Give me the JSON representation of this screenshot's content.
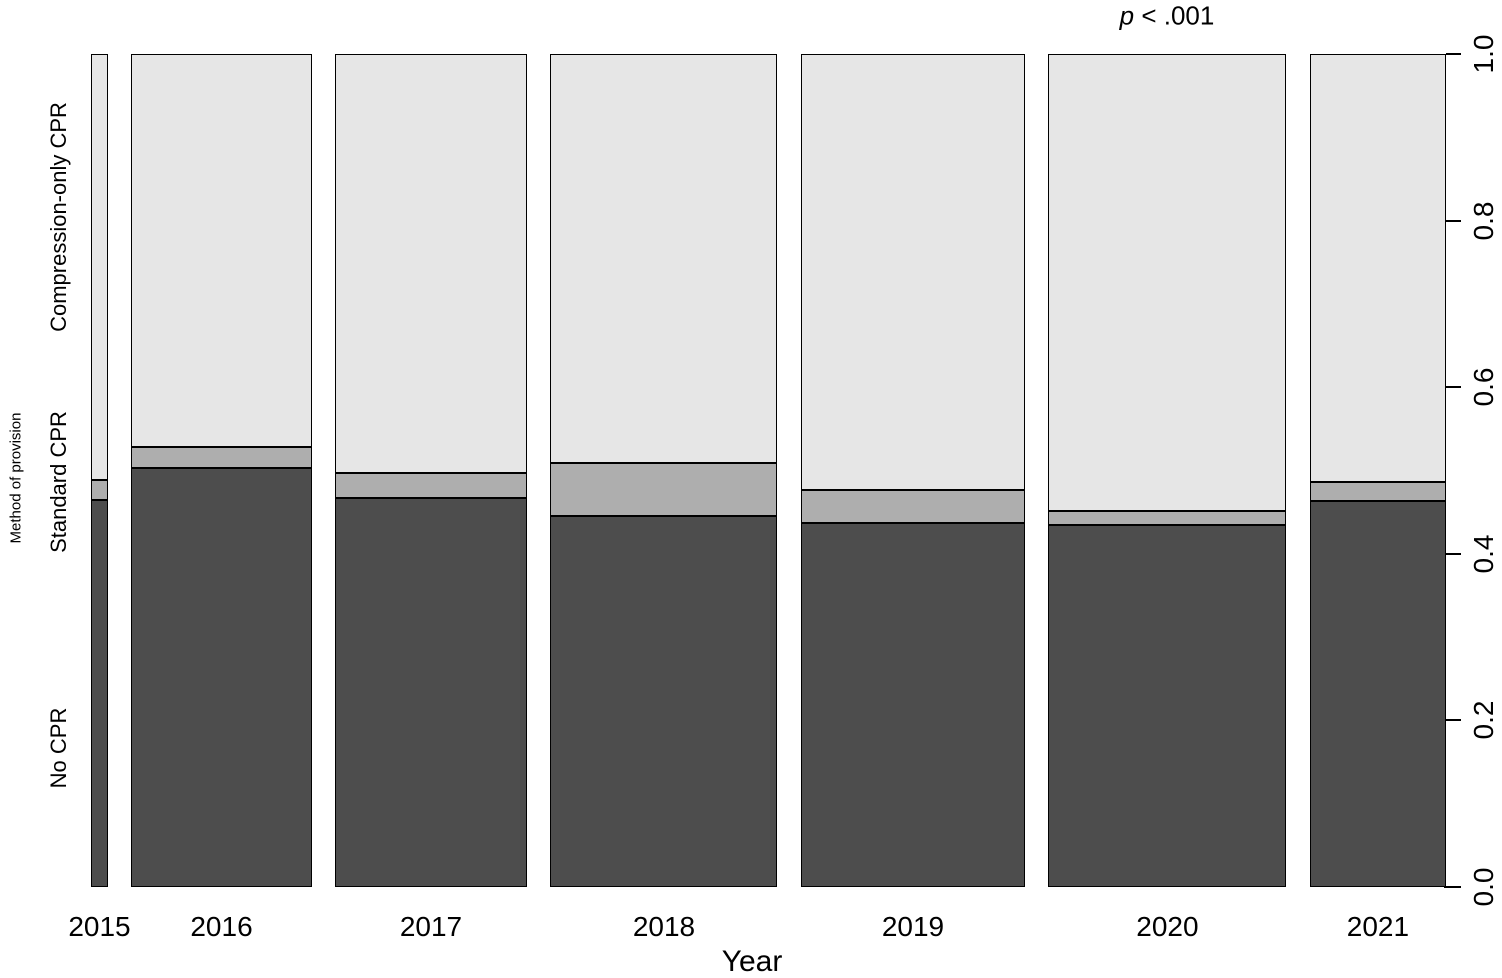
{
  "annotation": {
    "var": "p",
    "rest": " < .001",
    "full": "p < .001"
  },
  "x_axis": {
    "title": "Year",
    "categories": [
      "2015",
      "2016",
      "2017",
      "2018",
      "2019",
      "2020",
      "2021"
    ]
  },
  "y_axis": {
    "title": "Method of provision",
    "tick_labels": [
      "0.0",
      "0.2",
      "0.4",
      "0.6",
      "0.8",
      "1.0"
    ],
    "category_labels": [
      "No CPR",
      "Standard CPR",
      "Compression-only CPR"
    ]
  },
  "chart_data": {
    "type": "bar",
    "variant": "spineplot (stacked proportions, bar width proportional to group size)",
    "title": "",
    "xlabel": "Year",
    "ylabel": "Method of provision",
    "categories": [
      "2015",
      "2016",
      "2017",
      "2018",
      "2019",
      "2020",
      "2021"
    ],
    "bar_width_fractions": [
      0.014,
      0.1483,
      0.1581,
      0.187,
      0.1845,
      0.196,
      0.112
    ],
    "series": [
      {
        "name": "No CPR",
        "color": "#4d4d4d",
        "values": [
          0.465,
          0.503,
          0.467,
          0.445,
          0.437,
          0.435,
          0.463
        ]
      },
      {
        "name": "Standard CPR",
        "color": "#aeaeae",
        "values": [
          0.024,
          0.025,
          0.03,
          0.064,
          0.04,
          0.016,
          0.023
        ]
      },
      {
        "name": "Compression-only CPR",
        "color": "#e6e6e6",
        "values": [
          0.511,
          0.472,
          0.503,
          0.491,
          0.523,
          0.549,
          0.514
        ]
      }
    ],
    "stack_order_bottom_to_top": [
      "No CPR",
      "Standard CPR",
      "Compression-only CPR"
    ],
    "ylim": [
      0,
      1
    ],
    "yticks": [
      0.0,
      0.2,
      0.4,
      0.6,
      0.8,
      1.0
    ],
    "grid": false,
    "legend_position": "left axis category labels",
    "annotation": "p < .001"
  }
}
